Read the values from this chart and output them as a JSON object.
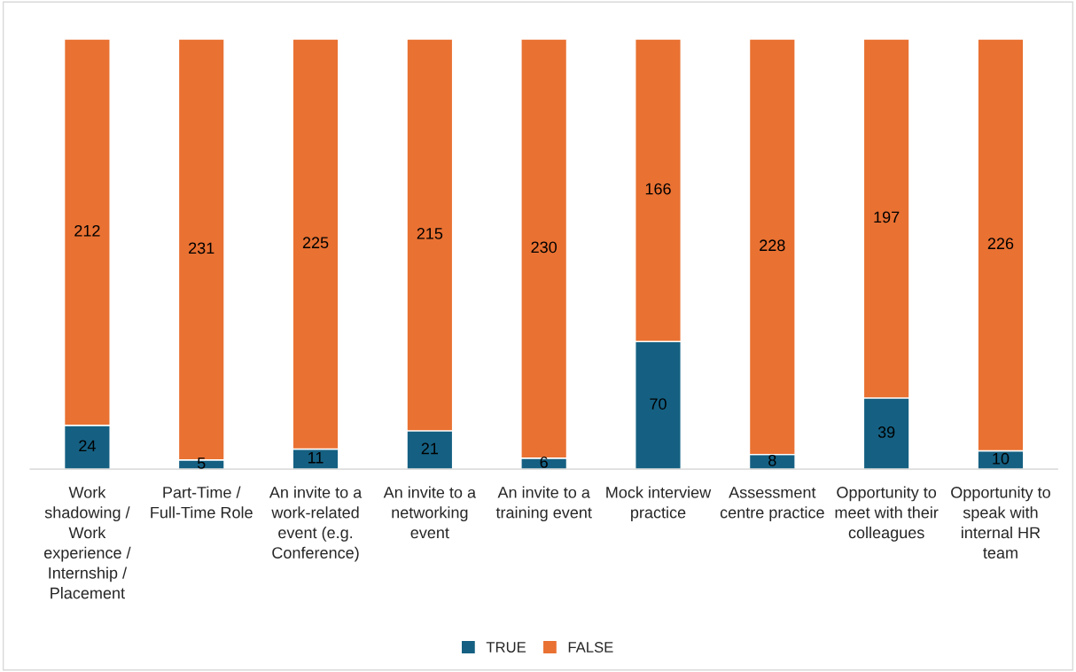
{
  "chart_data": {
    "type": "bar",
    "stacked": true,
    "data_labels": true,
    "legend": "bottom",
    "tick_labels": "x",
    "categories": [
      "Work\nshadowing /\nWork\nexperience /\nInternship /\nPlacement",
      "Part-Time /\nFull-Time Role",
      "An invite to a\nwork-related\nevent (e.g.\nConference)",
      "An invite to a\nnetworking\nevent",
      "An invite to a\ntraining event",
      "Mock interview\npractice",
      "Assessment\ncentre practice",
      "Opportunity to\nmeet with their\ncolleagues",
      "Opportunity to\nspeak with\ninternal HR\nteam"
    ],
    "series": [
      {
        "name": "TRUE",
        "color": "#156082",
        "values": [
          24,
          5,
          11,
          21,
          6,
          70,
          8,
          39,
          10
        ]
      },
      {
        "name": "FALSE",
        "color": "#e97132",
        "values": [
          212,
          231,
          225,
          215,
          230,
          166,
          228,
          197,
          226
        ]
      }
    ]
  }
}
